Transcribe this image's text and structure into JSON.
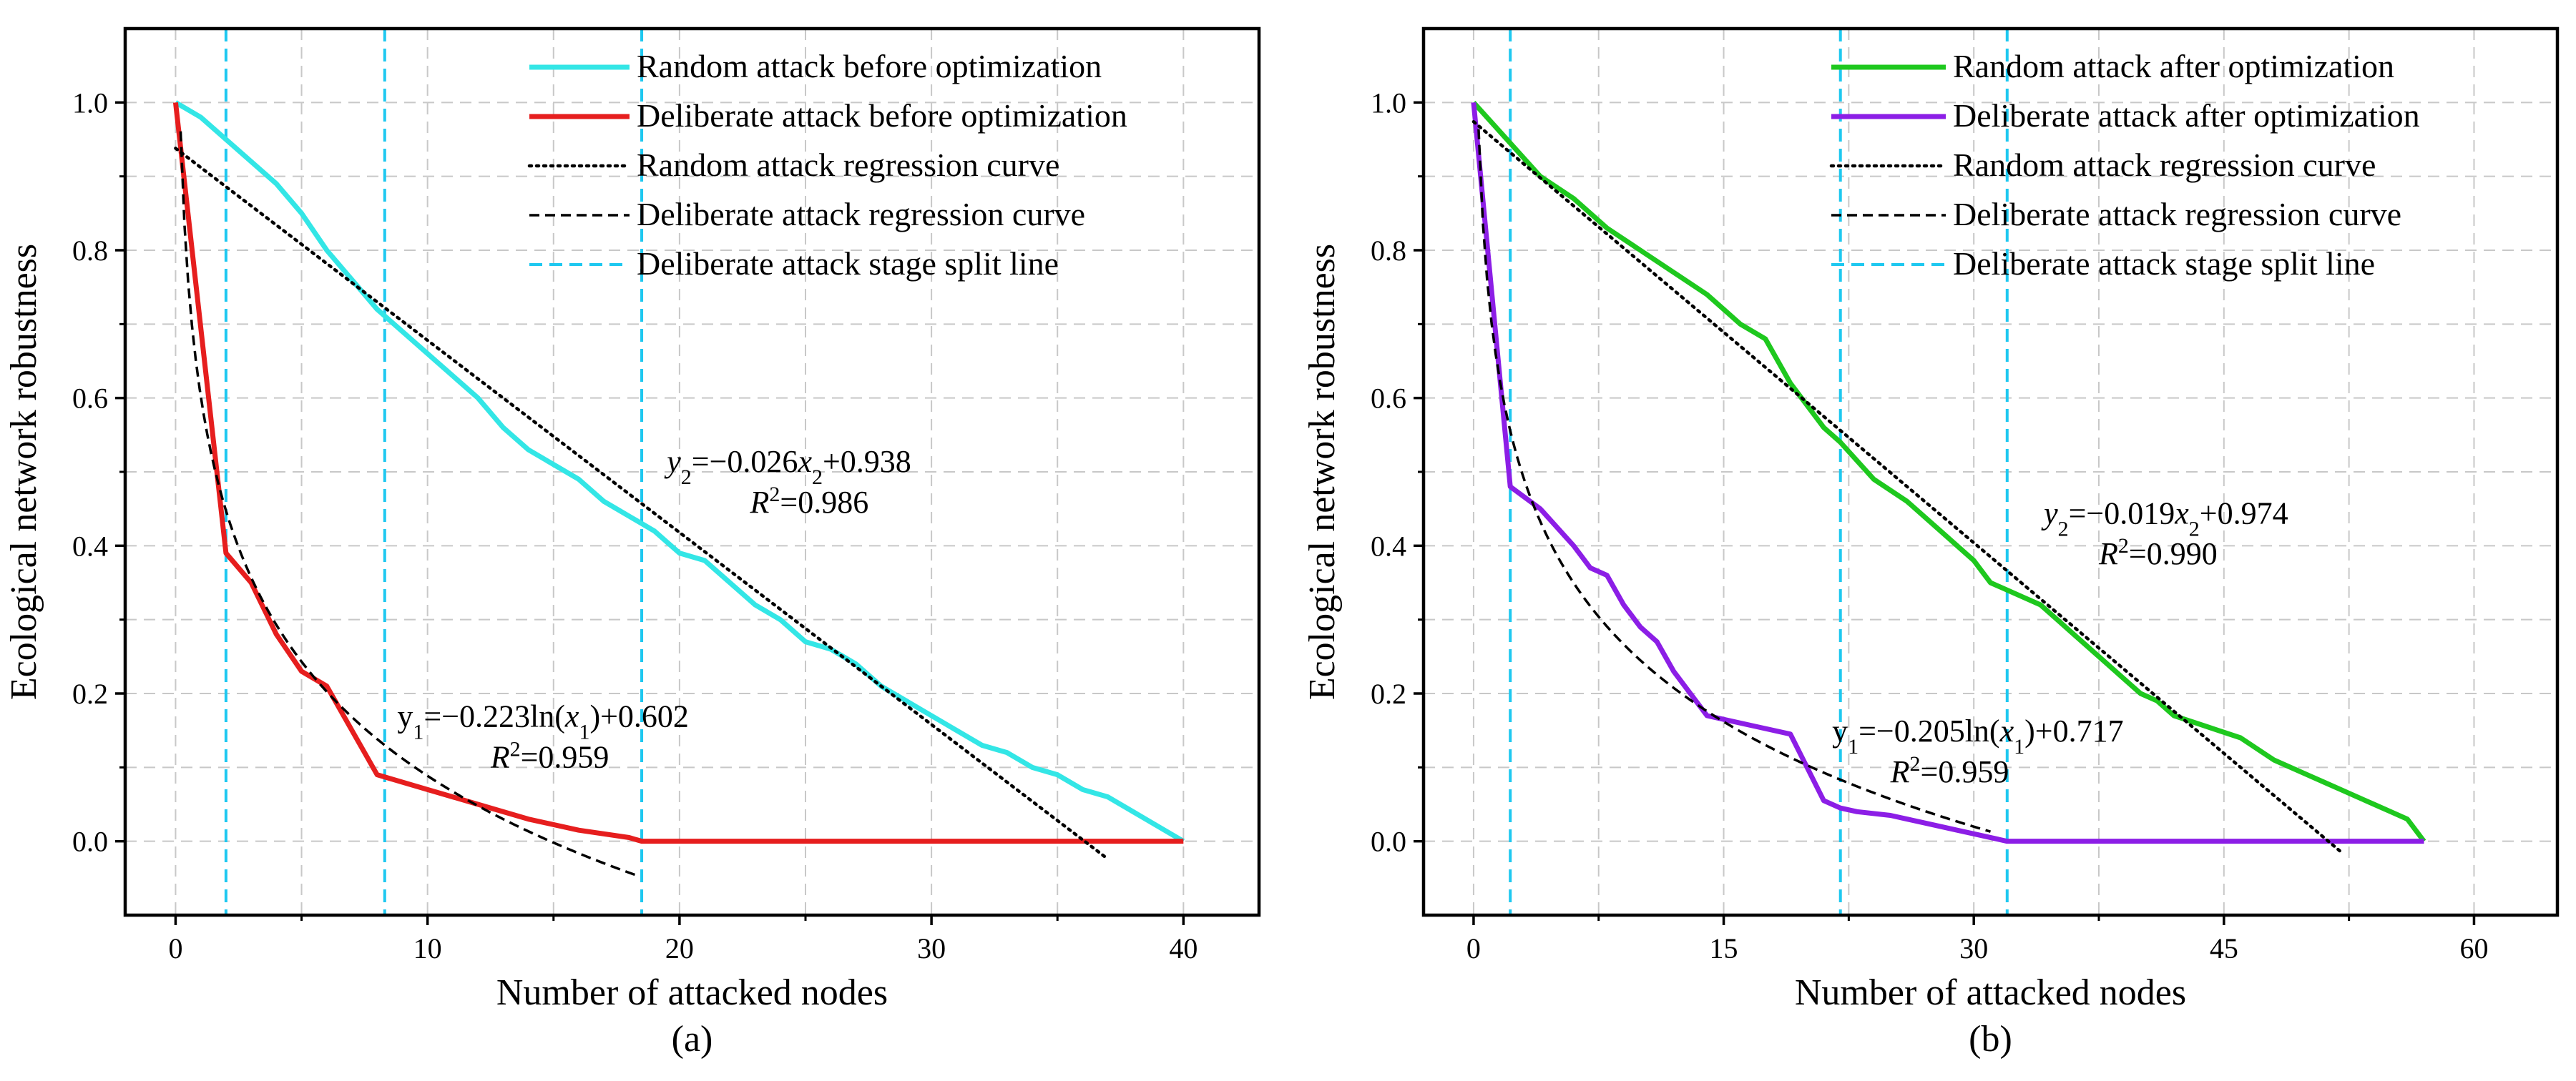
{
  "chart_data": [
    {
      "type": "line",
      "panel_label": "(a)",
      "xlabel": "Number of attacked nodes",
      "ylabel": "Ecological network robustness",
      "xlim": [
        -2,
        43
      ],
      "ylim": [
        -0.1,
        1.1
      ],
      "xticks": [
        0,
        10,
        20,
        30,
        40
      ],
      "xtick_labels": [
        "0",
        "10",
        "20",
        "30",
        "40"
      ],
      "yticks": [
        0.0,
        0.2,
        0.4,
        0.6,
        0.8,
        1.0
      ],
      "ytick_labels": [
        "0.0",
        "0.2",
        "0.4",
        "0.6",
        "0.8",
        "1.0"
      ],
      "grid": true,
      "legend_position": "top-right",
      "series": [
        {
          "name": "Random attack before optimization",
          "color": "#33e6e6",
          "style": "solid",
          "x": [
            0,
            1,
            2,
            3,
            4,
            5,
            6,
            7,
            8,
            9,
            10,
            11,
            12,
            13,
            14,
            15,
            16,
            17,
            18,
            19,
            20,
            21,
            22,
            23,
            24,
            25,
            26,
            27,
            28,
            29,
            30,
            31,
            32,
            33,
            34,
            35,
            36,
            37,
            38,
            39,
            40
          ],
          "y": [
            1.0,
            0.98,
            0.95,
            0.92,
            0.89,
            0.85,
            0.8,
            0.76,
            0.72,
            0.69,
            0.66,
            0.63,
            0.6,
            0.56,
            0.53,
            0.51,
            0.49,
            0.46,
            0.44,
            0.42,
            0.39,
            0.38,
            0.35,
            0.32,
            0.3,
            0.27,
            0.26,
            0.24,
            0.21,
            0.19,
            0.17,
            0.15,
            0.13,
            0.12,
            0.1,
            0.09,
            0.07,
            0.06,
            0.04,
            0.02,
            0.0
          ]
        },
        {
          "name": "Deliberate attack before optimization",
          "color": "#e61e1e",
          "style": "solid",
          "x": [
            0,
            2,
            3,
            4,
            5,
            6,
            7,
            8,
            9,
            10,
            12,
            14,
            16,
            18,
            18.5,
            20,
            25,
            30,
            35,
            40
          ],
          "y": [
            1.0,
            0.39,
            0.35,
            0.28,
            0.23,
            0.21,
            0.15,
            0.09,
            0.08,
            0.07,
            0.05,
            0.03,
            0.015,
            0.005,
            0.0,
            0.0,
            0.0,
            0.0,
            0.0,
            0.0
          ]
        },
        {
          "name": "Random attack regression curve",
          "color": "#000000",
          "style": "dotted",
          "regression": "linear",
          "slope": -0.026,
          "intercept": 0.938,
          "x_range": [
            0,
            37
          ]
        },
        {
          "name": "Deliberate attack regression curve",
          "color": "#000000",
          "style": "dashed",
          "regression": "log",
          "a": -0.223,
          "b": 0.602,
          "x_range": [
            0.2,
            18.3
          ]
        },
        {
          "name": "Deliberate attack stage split line",
          "color": "#1ec8f0",
          "style": "dashed",
          "vlines": [
            2,
            8.3,
            18.5
          ]
        }
      ],
      "annotations": [
        {
          "text_parts": [
            "y",
            "2",
            "=−0.026",
            "x",
            "2",
            "+0.938"
          ],
          "x": 19.5,
          "y": 0.5
        },
        {
          "text_parts": [
            "R",
            "2",
            "=0.986"
          ],
          "x": 22.8,
          "y": 0.445
        },
        {
          "text_parts": [
            "y",
            "1",
            "=−0.223ln(",
            "x",
            "1",
            ")+0.602"
          ],
          "x": 8.8,
          "y": 0.155
        },
        {
          "text_parts": [
            "R",
            "2",
            "=0.959"
          ],
          "x": 12.5,
          "y": 0.1
        }
      ]
    },
    {
      "type": "line",
      "panel_label": "(b)",
      "xlabel": "Number of attacked nodes",
      "ylabel": "Ecological network robustness",
      "xlim": [
        -3,
        65
      ],
      "ylim": [
        -0.1,
        1.1
      ],
      "xticks": [
        0,
        15,
        30,
        45,
        60
      ],
      "xtick_labels": [
        "0",
        "15",
        "30",
        "45",
        "60"
      ],
      "yticks": [
        0.0,
        0.2,
        0.4,
        0.6,
        0.8,
        1.0
      ],
      "ytick_labels": [
        "0.0",
        "0.2",
        "0.4",
        "0.6",
        "0.8",
        "1.0"
      ],
      "grid": true,
      "legend_position": "top-right",
      "series": [
        {
          "name": "Random attack after optimization",
          "color": "#1ec81e",
          "style": "solid",
          "x": [
            0,
            2,
            4,
            6,
            8,
            10,
            12,
            14,
            16,
            17.5,
            19,
            21,
            22,
            24,
            26,
            28,
            30,
            31,
            33,
            34,
            35,
            36,
            37,
            38,
            39,
            40,
            41,
            42,
            44,
            46,
            48,
            50,
            51,
            52,
            53,
            54,
            55,
            56,
            57
          ],
          "y": [
            1.0,
            0.95,
            0.9,
            0.87,
            0.83,
            0.8,
            0.77,
            0.74,
            0.7,
            0.68,
            0.62,
            0.56,
            0.54,
            0.49,
            0.46,
            0.42,
            0.38,
            0.35,
            0.33,
            0.32,
            0.3,
            0.28,
            0.26,
            0.24,
            0.22,
            0.2,
            0.19,
            0.17,
            0.155,
            0.14,
            0.11,
            0.09,
            0.08,
            0.07,
            0.06,
            0.05,
            0.04,
            0.03,
            0.0
          ]
        },
        {
          "name": "Deliberate attack after optimization",
          "color": "#8c1ee6",
          "style": "solid",
          "x": [
            0,
            2.2,
            4,
            6,
            7,
            8,
            9,
            10,
            11,
            12,
            13,
            14,
            15,
            17,
            19,
            20,
            21,
            22,
            23,
            25,
            27,
            29,
            30,
            32,
            35,
            40,
            45,
            50,
            55,
            57
          ],
          "y": [
            1.0,
            0.48,
            0.45,
            0.4,
            0.37,
            0.36,
            0.32,
            0.29,
            0.27,
            0.23,
            0.2,
            0.17,
            0.165,
            0.155,
            0.145,
            0.1,
            0.055,
            0.045,
            0.04,
            0.035,
            0.025,
            0.015,
            0.01,
            0.0,
            0.0,
            0.0,
            0.0,
            0.0,
            0.0,
            0.0
          ]
        },
        {
          "name": "Random attack regression curve",
          "color": "#000000",
          "style": "dotted",
          "regression": "linear",
          "slope": -0.019,
          "intercept": 0.974,
          "x_range": [
            0,
            52
          ]
        },
        {
          "name": "Deliberate attack regression curve",
          "color": "#000000",
          "style": "dashed",
          "regression": "log",
          "a": -0.205,
          "b": 0.717,
          "x_range": [
            0.3,
            31
          ]
        },
        {
          "name": "Deliberate attack stage split line",
          "color": "#1ec8f0",
          "style": "dashed",
          "vlines": [
            2.2,
            22,
            32
          ]
        }
      ],
      "annotations": [
        {
          "text_parts": [
            "y",
            "2",
            "=−0.019",
            "x",
            "2",
            "+0.974"
          ],
          "x": 34.2,
          "y": 0.43
        },
        {
          "text_parts": [
            "R",
            "2",
            "=0.990"
          ],
          "x": 37.5,
          "y": 0.375
        },
        {
          "text_parts": [
            "y",
            "1",
            "=−0.205ln(",
            "x",
            "1",
            ")+0.717"
          ],
          "x": 21.5,
          "y": 0.135
        },
        {
          "text_parts": [
            "R",
            "2",
            "=0.959"
          ],
          "x": 25.0,
          "y": 0.08
        }
      ]
    }
  ]
}
